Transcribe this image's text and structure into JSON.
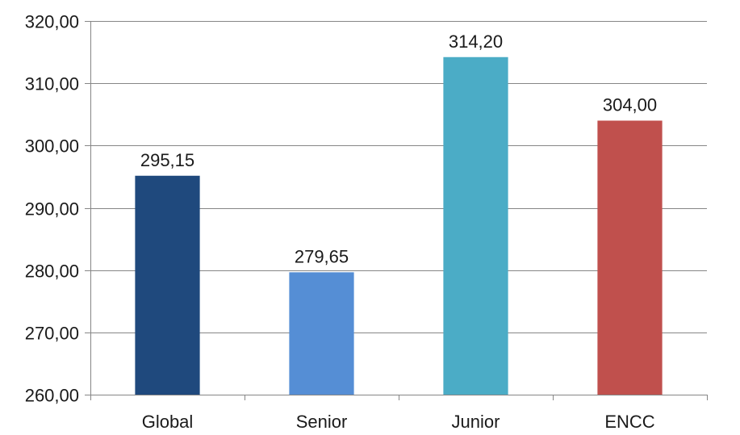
{
  "chart_data": {
    "type": "bar",
    "categories": [
      "Global",
      "Senior",
      "Junior",
      "ENCC"
    ],
    "values": [
      295.15,
      279.65,
      314.2,
      304.0
    ],
    "data_labels": [
      "295,15",
      "279,65",
      "314,20",
      "304,00"
    ],
    "colors": [
      "#1f497d",
      "#558ed5",
      "#4bacc6",
      "#c0504d"
    ],
    "ylim": [
      260,
      320
    ],
    "yticks": [
      260,
      270,
      280,
      290,
      300,
      310,
      320
    ],
    "ytick_labels": [
      "260,00",
      "270,00",
      "280,00",
      "290,00",
      "300,00",
      "310,00",
      "320,00"
    ],
    "grid": true,
    "grid_color": "#868686",
    "axis_color": "#868686",
    "title": "",
    "xlabel": "",
    "ylabel": "",
    "legend": "none"
  }
}
